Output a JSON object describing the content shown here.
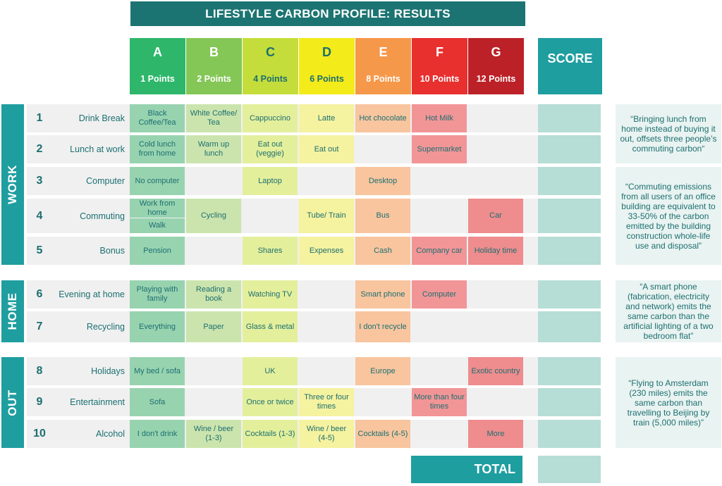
{
  "title": "LIFESTYLE CARBON PROFILE: RESULTS",
  "grades": [
    {
      "letter": "A",
      "points": "1 Points",
      "color": "#2eb76a",
      "text_color": "#ffffff"
    },
    {
      "letter": "B",
      "points": "2 Points",
      "color": "#84c757",
      "text_color": "#ffffff"
    },
    {
      "letter": "C",
      "points": "4 Points",
      "color": "#c5dd3a",
      "text_color": "#1c6f70"
    },
    {
      "letter": "D",
      "points": "6 Points",
      "color": "#f3eb1a",
      "text_color": "#1c6f70"
    },
    {
      "letter": "E",
      "points": "8 Points",
      "color": "#f6984a",
      "text_color": "#ffffff"
    },
    {
      "letter": "F",
      "points": "10 Points",
      "color": "#e8302f",
      "text_color": "#ffffff"
    },
    {
      "letter": "G",
      "points": "12 Points",
      "color": "#bc2128",
      "text_color": "#ffffff"
    }
  ],
  "score_header": "SCORE",
  "sections": {
    "work": "WORK",
    "home": "HOME",
    "out": "OUT"
  },
  "cell_colors": {
    "A": "#98d3b0",
    "B": "#cbe4ad",
    "C": "#e4ef9c",
    "D": "#f5f2a0",
    "E": "#f8c59f",
    "F": "#f29597",
    "G": "#ee8c8e"
  },
  "rows": [
    {
      "num": "1",
      "label": "Drink Break",
      "cells": {
        "A": "Black Coffee/Tea",
        "B": "White Coffee/ Tea",
        "C": "Cappuccino",
        "D": "Latte",
        "E": "Hot chocolate",
        "F": "Hot Milk"
      }
    },
    {
      "num": "2",
      "label": "Lunch at work",
      "cells": {
        "A": "Cold lunch from home",
        "B": "Warm up lunch",
        "C": "Eat out (veggie)",
        "D": "Eat out",
        "F": "Supermarket"
      }
    },
    {
      "num": "3",
      "label": "Computer",
      "cells": {
        "A": "No computer",
        "C": "Laptop",
        "E": "Desktop"
      }
    },
    {
      "num": "4",
      "label": "Commuting",
      "cells": {
        "A1": "Work from home",
        "A2": "Walk",
        "B": "Cycling",
        "D": "Tube/ Train",
        "E": "Bus",
        "G": "Car"
      }
    },
    {
      "num": "5",
      "label": "Bonus",
      "cells": {
        "A": "Pension",
        "C": "Shares",
        "D": "Expenses",
        "E": "Cash",
        "F": "Company car",
        "G": "Holiday time"
      }
    },
    {
      "num": "6",
      "label": "Evening at home",
      "cells": {
        "A": "Playing with family",
        "B": "Reading a book",
        "C": "Watching TV",
        "E": "Smart phone",
        "F": "Computer"
      }
    },
    {
      "num": "7",
      "label": "Recycling",
      "cells": {
        "A": "Everything",
        "B": "Paper",
        "C": "Glass & metal",
        "E": "I don't recycle"
      }
    },
    {
      "num": "8",
      "label": "Holidays",
      "cells": {
        "A": "My bed / sofa",
        "C": "UK",
        "E": "Europe",
        "G": "Exotic country"
      }
    },
    {
      "num": "9",
      "label": "Entertainment",
      "cells": {
        "A": "Sofa",
        "C": "Once or twice",
        "D": "Three or four times",
        "F": "More than four times"
      }
    },
    {
      "num": "10",
      "label": "Alcohol",
      "cells": {
        "A": "I don't drink",
        "B": "Wine / beer (1-3)",
        "C": "Cocktails (1-3)",
        "D": "Wine / beer (4-5)",
        "E": "Cocktails (4-5)",
        "G": "More"
      }
    }
  ],
  "quotes": [
    "“Bringing lunch from home instead of buying it out, offsets three people’s commuting carbon“",
    "“Commuting emissions from all users of an office building are equivalent to 33-50% of the carbon emitted by the building construction whole-life use and disposal”",
    "“A smart phone (fabrication, electricity and network) emits the same carbon than the artificial lighting of a two bedroom flat”",
    "“Flying to Amsterdam (230 miles) emits the same carbon than travelling to Beijing by train (5,000 miles)”"
  ],
  "total_label": "TOTAL"
}
